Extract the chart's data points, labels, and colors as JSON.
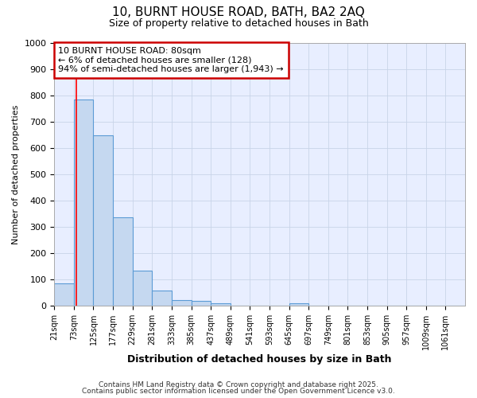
{
  "title1": "10, BURNT HOUSE ROAD, BATH, BA2 2AQ",
  "title2": "Size of property relative to detached houses in Bath",
  "xlabel": "Distribution of detached houses by size in Bath",
  "ylabel": "Number of detached properties",
  "categories": [
    "21sqm",
    "73sqm",
    "125sqm",
    "177sqm",
    "229sqm",
    "281sqm",
    "333sqm",
    "385sqm",
    "437sqm",
    "489sqm",
    "541sqm",
    "593sqm",
    "645sqm",
    "697sqm",
    "749sqm",
    "801sqm",
    "853sqm",
    "905sqm",
    "957sqm",
    "1009sqm",
    "1061sqm"
  ],
  "values": [
    85,
    785,
    648,
    335,
    133,
    58,
    22,
    18,
    8,
    0,
    0,
    0,
    10,
    0,
    0,
    0,
    0,
    0,
    0,
    0,
    0
  ],
  "bar_color": "#c5d8f0",
  "bar_edge_color": "#5b9bd5",
  "bar_alpha": 1.0,
  "red_line_x": 80,
  "annotation_line1": "10 BURNT HOUSE ROAD: 80sqm",
  "annotation_line2": "← 6% of detached houses are smaller (128)",
  "annotation_line3": "94% of semi-detached houses are larger (1,943) →",
  "annotation_box_color": "#ffffff",
  "annotation_box_edge": "#cc0000",
  "ylim": [
    0,
    1000
  ],
  "yticks": [
    0,
    100,
    200,
    300,
    400,
    500,
    600,
    700,
    800,
    900,
    1000
  ],
  "grid_color": "#c8d4e8",
  "bg_color": "#ffffff",
  "plot_bg_color": "#e8eeff",
  "footer1": "Contains HM Land Registry data © Crown copyright and database right 2025.",
  "footer2": "Contains public sector information licensed under the Open Government Licence v3.0.",
  "bin_width": 52
}
